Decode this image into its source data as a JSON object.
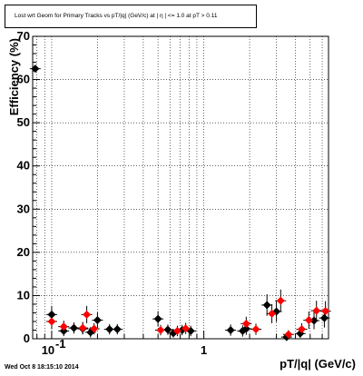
{
  "page": {
    "title": "Lost wrt Geom for Primary Tracks vs pT/|q| (GeV/c) at |  η | <= 1.0 at pT > 0.11",
    "timestamp": "Wed Oct  8 18:15:10 2014"
  },
  "colors": {
    "series_black": "#000000",
    "series_red": "#ff0000",
    "grid": "#000000",
    "background": "#ffffff"
  },
  "chart_data": {
    "type": "scatter",
    "title": "Lost wrt Geom for Primary Tracks vs pT/|q| (GeV/c) at |  η | <= 1.0 at pT > 0.11",
    "xlabel": "pT/|q| (GeV/c)",
    "ylabel": "Efficiency (%)",
    "xscale": "log",
    "xlim": [
      0.075,
      6.6
    ],
    "ylim": [
      0,
      70
    ],
    "grid": true,
    "x_ticks": [
      {
        "value": 0.1,
        "label": "10",
        "exp": "-1"
      },
      {
        "value": 1,
        "label": "1",
        "exp": ""
      }
    ],
    "y_ticks": [
      0,
      10,
      20,
      30,
      40,
      50,
      60,
      70
    ],
    "series": [
      {
        "color": "#000000",
        "points": [
          {
            "x": 0.078,
            "y": 62.5,
            "ye": 0.8
          },
          {
            "x": 0.1,
            "y": 5.6,
            "ye": 2.0
          },
          {
            "x": 0.12,
            "y": 1.8,
            "ye": 1.2
          },
          {
            "x": 0.14,
            "y": 2.5,
            "ye": 1.3
          },
          {
            "x": 0.16,
            "y": 2.3,
            "ye": 1.3
          },
          {
            "x": 0.18,
            "y": 1.5,
            "ye": 1.2
          },
          {
            "x": 0.2,
            "y": 4.3,
            "ye": 1.8
          },
          {
            "x": 0.24,
            "y": 2.2,
            "ye": 1.2
          },
          {
            "x": 0.27,
            "y": 2.2,
            "ye": 1.2
          },
          {
            "x": 0.5,
            "y": 4.6,
            "ye": 1.8
          },
          {
            "x": 0.58,
            "y": 2.1,
            "ye": 1.2
          },
          {
            "x": 0.63,
            "y": 1.3,
            "ye": 1.0
          },
          {
            "x": 0.72,
            "y": 2.0,
            "ye": 1.2
          },
          {
            "x": 0.82,
            "y": 1.8,
            "ye": 1.2
          },
          {
            "x": 1.5,
            "y": 2.0,
            "ye": 1.3
          },
          {
            "x": 1.8,
            "y": 1.8,
            "ye": 1.3
          },
          {
            "x": 1.9,
            "y": 2.3,
            "ye": 1.4
          },
          {
            "x": 2.6,
            "y": 7.8,
            "ye": 2.5
          },
          {
            "x": 3.0,
            "y": 6.3,
            "ye": 2.4
          },
          {
            "x": 3.5,
            "y": 0.4,
            "ye": 0.8
          },
          {
            "x": 4.3,
            "y": 1.2,
            "ye": 1.0
          },
          {
            "x": 5.3,
            "y": 4.2,
            "ye": 2.0
          },
          {
            "x": 6.2,
            "y": 4.8,
            "ye": 2.2
          }
        ]
      },
      {
        "color": "#ff0000",
        "points": [
          {
            "x": 0.1,
            "y": 4.0,
            "ye": 1.8
          },
          {
            "x": 0.12,
            "y": 2.8,
            "ye": 1.4
          },
          {
            "x": 0.16,
            "y": 2.5,
            "ye": 1.4
          },
          {
            "x": 0.17,
            "y": 5.6,
            "ye": 2.0
          },
          {
            "x": 0.19,
            "y": 2.3,
            "ye": 1.3
          },
          {
            "x": 0.52,
            "y": 2.0,
            "ye": 1.2
          },
          {
            "x": 0.67,
            "y": 1.8,
            "ye": 1.2
          },
          {
            "x": 0.76,
            "y": 2.4,
            "ye": 1.3
          },
          {
            "x": 1.9,
            "y": 3.5,
            "ye": 1.6
          },
          {
            "x": 2.2,
            "y": 2.2,
            "ye": 1.3
          },
          {
            "x": 2.8,
            "y": 5.8,
            "ye": 2.2
          },
          {
            "x": 3.2,
            "y": 8.8,
            "ye": 2.6
          },
          {
            "x": 3.6,
            "y": 1.0,
            "ye": 1.0
          },
          {
            "x": 4.4,
            "y": 2.2,
            "ye": 1.4
          },
          {
            "x": 4.9,
            "y": 4.3,
            "ye": 2.0
          },
          {
            "x": 5.5,
            "y": 6.5,
            "ye": 2.3
          },
          {
            "x": 6.3,
            "y": 6.4,
            "ye": 2.3
          }
        ]
      }
    ]
  }
}
